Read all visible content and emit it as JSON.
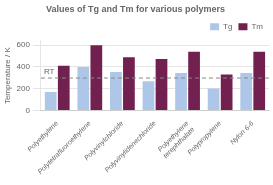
{
  "chart_data": {
    "type": "bar",
    "title": "Values of Tg and Tm for various polymers",
    "ylabel": "Temperature / K",
    "categories": [
      "Polyethylene",
      "Polytetrafluoroethylene",
      "Polyvinylchloride",
      "Polyvinylidenechloride",
      "Polyethylene\nterephthalate",
      "Polypropylene",
      "Nylon 6-6"
    ],
    "series": [
      {
        "name": "Tg",
        "color": "#aec6e8",
        "values": [
          170,
          400,
          354,
          268,
          345,
          203,
          345
        ]
      },
      {
        "name": "Tm",
        "color": "#722050",
        "values": [
          410,
          600,
          490,
          473,
          540,
          330,
          540
        ]
      }
    ],
    "ylim": [
      0,
      640
    ],
    "yticks": [
      0,
      200,
      400,
      600
    ],
    "grid": true,
    "legend": "upper right",
    "annotations": [
      {
        "text": "RT",
        "y": 298,
        "line_style": "dashed",
        "color": "#888888"
      }
    ]
  }
}
